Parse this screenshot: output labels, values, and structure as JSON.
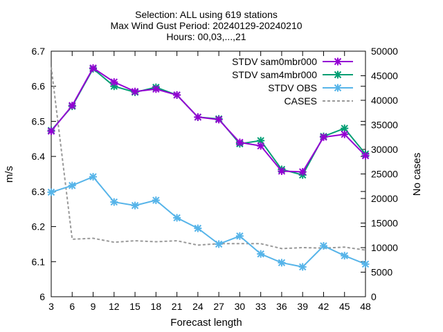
{
  "chart_data": {
    "type": "line",
    "title": [
      "Selection: ALL using   619 stations",
      "Max Wind Gust   Period: 20240129-20240210",
      "Hours: 00,03,...,21"
    ],
    "xlabel": "Forecast length",
    "ylabel": "m/s",
    "y2label": "No cases",
    "x": [
      3,
      6,
      9,
      12,
      15,
      18,
      21,
      24,
      27,
      30,
      33,
      36,
      39,
      42,
      45,
      48
    ],
    "xlim": [
      3,
      48
    ],
    "ylim": [
      6.0,
      6.7
    ],
    "y2lim": [
      0,
      50000
    ],
    "xticks": [
      "3",
      "6",
      "9",
      "12",
      "15",
      "18",
      "21",
      "24",
      "27",
      "30",
      "33",
      "36",
      "39",
      "42",
      "45",
      "48"
    ],
    "yticks": [
      "6",
      "6.1",
      "6.2",
      "6.3",
      "6.4",
      "6.5",
      "6.6",
      "6.7"
    ],
    "y2ticks": [
      "0",
      "5000",
      "10000",
      "15000",
      "20000",
      "25000",
      "30000",
      "35000",
      "40000",
      "45000",
      "50000"
    ],
    "legend_position": "top-right",
    "grid": false,
    "series": [
      {
        "name": "STDV sam0mbr000",
        "color": "#9400d3",
        "marker": "x",
        "axis": "y1",
        "values": [
          6.472,
          6.545,
          6.652,
          6.612,
          6.585,
          6.592,
          6.575,
          6.512,
          6.505,
          6.44,
          6.43,
          6.358,
          6.356,
          6.455,
          6.463,
          6.402
        ]
      },
      {
        "name": "STDV sam4mbr000",
        "color": "#009e73",
        "marker": "x",
        "axis": "y1",
        "values": [
          6.474,
          6.543,
          6.65,
          6.6,
          6.583,
          6.597,
          6.575,
          6.512,
          6.507,
          6.436,
          6.445,
          6.363,
          6.347,
          6.457,
          6.48,
          6.407
        ]
      },
      {
        "name": "STDV OBS",
        "color": "#56b4e9",
        "marker": "x",
        "axis": "y1",
        "values": [
          6.298,
          6.317,
          6.342,
          6.27,
          6.26,
          6.275,
          6.225,
          6.195,
          6.15,
          6.173,
          6.122,
          6.097,
          6.085,
          6.145,
          6.117,
          6.093
        ]
      },
      {
        "name": "CASES",
        "color": "#999999",
        "dashed": true,
        "axis": "y2",
        "values": [
          46800,
          11700,
          11900,
          11100,
          11400,
          11200,
          11400,
          10500,
          10800,
          10800,
          10800,
          9800,
          10000,
          9900,
          10100,
          9500
        ]
      }
    ]
  }
}
